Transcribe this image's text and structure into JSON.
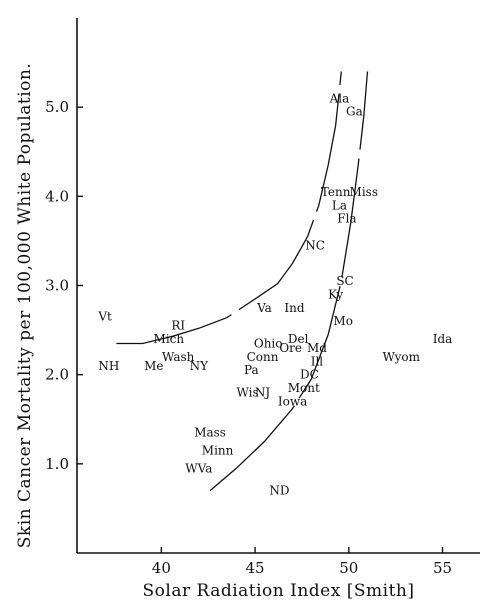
{
  "chart_data": {
    "type": "scatter",
    "xlabel": "Solar Radiation Index [Smith]",
    "ylabel": "Skin Cancer Mortality per 100,000 White Population.",
    "xlim": [
      35.5,
      57
    ],
    "ylim": [
      0,
      6.0
    ],
    "xticks": [
      40,
      45,
      50,
      55
    ],
    "xtick_labels": [
      "40",
      "45",
      "50",
      "55"
    ],
    "yticks": [
      1,
      2,
      3,
      4,
      5
    ],
    "ytick_labels": [
      "1.0",
      "2.0",
      "3.0",
      "4.0",
      "5.0"
    ],
    "grid": false,
    "points": [
      {
        "label": "Ala",
        "x": 49.5,
        "y": 5.1
      },
      {
        "label": "Ga",
        "x": 50.3,
        "y": 4.95
      },
      {
        "label": "Tenn",
        "x": 49.3,
        "y": 4.05
      },
      {
        "label": "Miss",
        "x": 50.8,
        "y": 4.05
      },
      {
        "label": "La",
        "x": 49.5,
        "y": 3.9
      },
      {
        "label": "Fla",
        "x": 49.9,
        "y": 3.75
      },
      {
        "label": "NC",
        "x": 48.2,
        "y": 3.45
      },
      {
        "label": "SC",
        "x": 49.8,
        "y": 3.05
      },
      {
        "label": "Ky",
        "x": 49.3,
        "y": 2.9
      },
      {
        "label": "Va",
        "x": 45.5,
        "y": 2.75
      },
      {
        "label": "Ind",
        "x": 47.1,
        "y": 2.75
      },
      {
        "label": "Mo",
        "x": 49.7,
        "y": 2.6
      },
      {
        "label": "Vt",
        "x": 37.0,
        "y": 2.65
      },
      {
        "label": "Del",
        "x": 47.3,
        "y": 2.4
      },
      {
        "label": "Ore",
        "x": 46.9,
        "y": 2.3
      },
      {
        "label": "Md",
        "x": 48.3,
        "y": 2.3
      },
      {
        "label": "RI",
        "x": 40.9,
        "y": 2.55
      },
      {
        "label": "Ohio",
        "x": 45.7,
        "y": 2.35
      },
      {
        "label": "Ill",
        "x": 48.3,
        "y": 2.15
      },
      {
        "label": "Conn",
        "x": 45.4,
        "y": 2.2
      },
      {
        "label": "Mich",
        "x": 40.4,
        "y": 2.4
      },
      {
        "label": "Pa",
        "x": 44.8,
        "y": 2.05
      },
      {
        "label": "DC",
        "x": 47.9,
        "y": 2.0
      },
      {
        "label": "Wash",
        "x": 40.9,
        "y": 2.2
      },
      {
        "label": "Mont",
        "x": 47.6,
        "y": 1.85
      },
      {
        "label": "Wis",
        "x": 44.6,
        "y": 1.8
      },
      {
        "label": "NJ",
        "x": 45.4,
        "y": 1.8
      },
      {
        "label": "NY",
        "x": 42.0,
        "y": 2.1
      },
      {
        "label": "Ida",
        "x": 55.0,
        "y": 2.4
      },
      {
        "label": "Wyom",
        "x": 52.8,
        "y": 2.2
      },
      {
        "label": "NH",
        "x": 37.2,
        "y": 2.1
      },
      {
        "label": "Me",
        "x": 39.6,
        "y": 2.1
      },
      {
        "label": "Iowa",
        "x": 47.0,
        "y": 1.7
      },
      {
        "label": "Mass",
        "x": 42.6,
        "y": 1.35
      },
      {
        "label": "Minn",
        "x": 43.0,
        "y": 1.15
      },
      {
        "label": "WVa",
        "x": 42.0,
        "y": 0.95
      },
      {
        "label": "ND",
        "x": 46.3,
        "y": 0.7
      }
    ],
    "curves": [
      {
        "name": "",
        "points": [
          [
            37.6,
            2.35
          ],
          [
            39,
            2.35
          ],
          [
            40.6,
            2.43
          ],
          [
            42,
            2.52
          ],
          [
            43.5,
            2.64
          ],
          [
            45,
            2.85
          ],
          [
            46.2,
            3.02
          ],
          [
            47,
            3.25
          ],
          [
            47.8,
            3.55
          ],
          [
            48.4,
            3.9
          ],
          [
            48.9,
            4.35
          ],
          [
            49.3,
            4.8
          ],
          [
            49.6,
            5.4
          ]
        ]
      },
      {
        "name": "",
        "points": [
          [
            42.6,
            0.7
          ],
          [
            44,
            0.95
          ],
          [
            45.5,
            1.25
          ],
          [
            47,
            1.62
          ],
          [
            48,
            1.95
          ],
          [
            48.9,
            2.45
          ],
          [
            49.6,
            3.05
          ],
          [
            50.1,
            3.7
          ],
          [
            50.5,
            4.35
          ],
          [
            50.8,
            4.9
          ],
          [
            51.0,
            5.4
          ]
        ]
      }
    ]
  }
}
